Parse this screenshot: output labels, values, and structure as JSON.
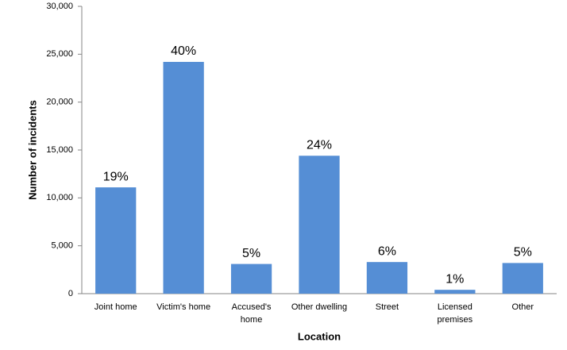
{
  "chart_data": {
    "type": "bar",
    "x_label": "Location",
    "y_label": "Number of incidents",
    "categories": [
      "Joint home",
      "Victim's home",
      "Accused's\nhome",
      "Other dwelling",
      "Street",
      "Licensed\npremises",
      "Other"
    ],
    "values": [
      11100,
      24200,
      3100,
      14400,
      3300,
      400,
      3200
    ],
    "percent_labels": [
      "19%",
      "40%",
      "5%",
      "24%",
      "6%",
      "1%",
      "5%"
    ],
    "color": "#558ed5",
    "ylim": [
      0,
      30000
    ],
    "yticks": [
      0,
      {
        "value": 5000,
        "label": "5,000"
      },
      {
        "value": 10000,
        "label": "10,000"
      },
      {
        "value": 15000,
        "label": "15,000"
      },
      {
        "value": 20000,
        "label": "20,000"
      },
      {
        "value": 25000,
        "label": "25,000"
      },
      {
        "value": 30000,
        "label": "30,000"
      }
    ],
    "grid": false
  }
}
